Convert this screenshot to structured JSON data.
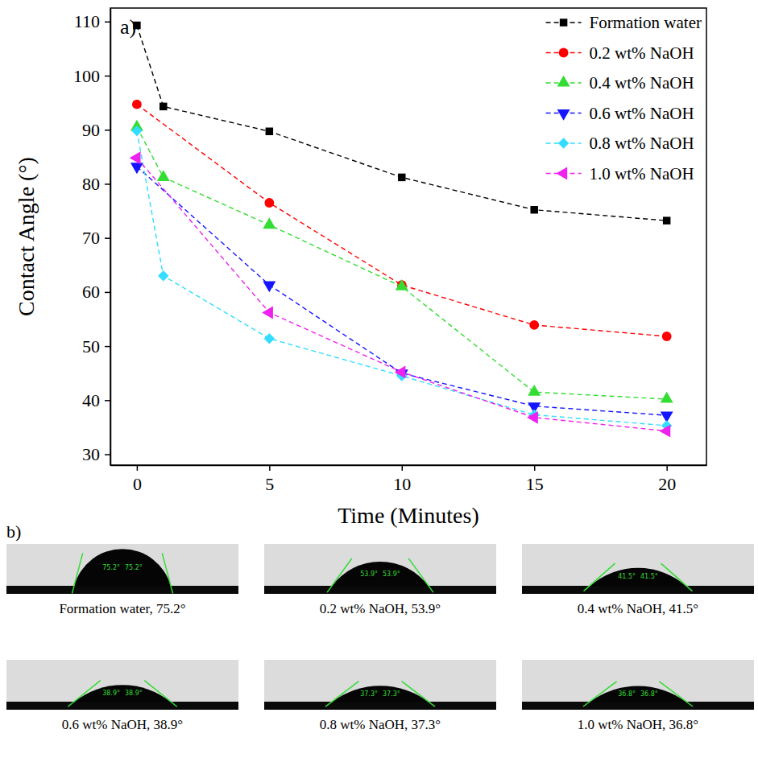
{
  "chart_data": [
    {
      "type": "line",
      "panel_label": "a)",
      "x_label": "Time (Minutes)",
      "y_label": "Contact Angle (°)",
      "xlim": [
        -1,
        21.5
      ],
      "xticks": [
        0,
        5,
        10,
        15,
        20
      ],
      "ylim": [
        28,
        112.5
      ],
      "yticks": [
        30,
        40,
        50,
        60,
        70,
        80,
        90,
        100,
        110
      ],
      "legend": "top-right",
      "line_style": "dashed",
      "series": [
        {
          "name": "Formation water",
          "color": "#000000",
          "marker": "square",
          "x": [
            0,
            1,
            5,
            10,
            15,
            20
          ],
          "values": [
            109.3,
            94.3,
            89.7,
            81.2,
            75.2,
            73.2
          ]
        },
        {
          "name": "0.2 wt% NaOH",
          "color": "#ff0000",
          "marker": "circle",
          "x": [
            0,
            5,
            10,
            15,
            20
          ],
          "values": [
            94.7,
            76.5,
            61.3,
            53.9,
            51.8
          ]
        },
        {
          "name": "0.4 wt% NaOH",
          "color": "#33dd33",
          "marker": "triangle-up",
          "x": [
            0,
            1,
            5,
            10,
            15,
            20
          ],
          "values": [
            90.5,
            81.2,
            72.4,
            61.0,
            41.5,
            40.2
          ]
        },
        {
          "name": "0.6 wt% NaOH",
          "color": "#1515ff",
          "marker": "triangle-down",
          "x": [
            0,
            5,
            10,
            15,
            20
          ],
          "values": [
            83.2,
            61.3,
            45.0,
            38.9,
            37.2
          ]
        },
        {
          "name": "0.8 wt% NaOH",
          "color": "#33ddff",
          "marker": "diamond",
          "x": [
            0,
            1,
            5,
            10,
            15,
            20
          ],
          "values": [
            89.8,
            63.0,
            51.4,
            44.5,
            37.3,
            35.3
          ]
        },
        {
          "name": "1.0 wt% NaOH",
          "color": "#ee22ee",
          "marker": "triangle-left",
          "x": [
            0,
            5,
            10,
            15,
            20
          ],
          "values": [
            84.8,
            56.2,
            45.2,
            36.8,
            34.3
          ]
        }
      ]
    },
    {
      "type": "droplet",
      "panel_label": "b)",
      "labels": [
        "Formation water, 75.2°",
        "0.2 wt% NaOH, 53.9°",
        "0.4 wt% NaOH, 41.5°",
        "0.6 wt% NaOH, 38.9°",
        "0.8 wt% NaOH, 37.3°",
        "1.0 wt% NaOH, 36.8°"
      ],
      "values": [
        75.2,
        53.9,
        41.5,
        38.9,
        37.3,
        36.8
      ],
      "value_labels": [
        "75.2°",
        "53.9°",
        "41.5°",
        "38.9°",
        "37.3°",
        "36.8°"
      ]
    }
  ]
}
